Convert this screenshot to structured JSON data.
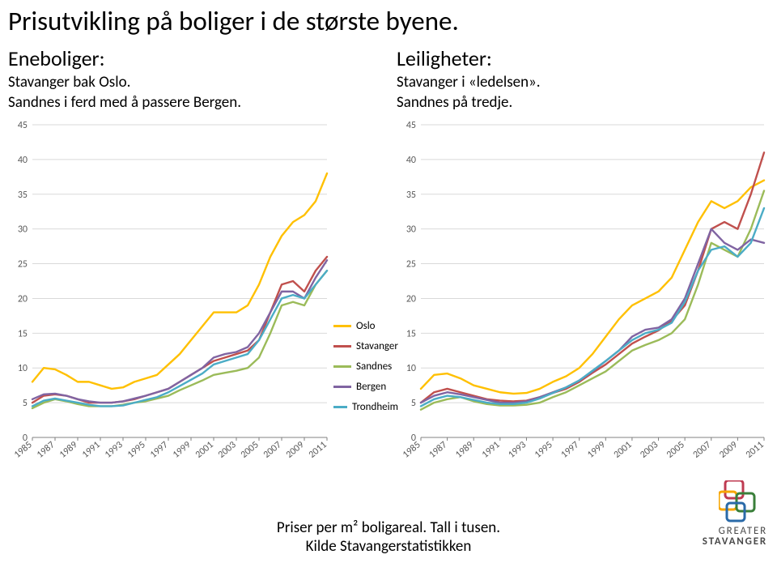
{
  "title": "Prisutvikling på boliger i de største byene.",
  "left_block": {
    "heading": "Eneboliger:",
    "line1": "Stavanger bak Oslo.",
    "line2": "Sandnes i ferd med å passere Bergen."
  },
  "right_block": {
    "heading": "Leiligheter:",
    "line1": "Stavanger i «ledelsen».",
    "line2": "Sandnes på tredje."
  },
  "legend": [
    {
      "label": "Oslo",
      "color": "#ffc000"
    },
    {
      "label": "Stavanger",
      "color": "#c0504d"
    },
    {
      "label": "Sandnes",
      "color": "#9bbb59"
    },
    {
      "label": "Bergen",
      "color": "#8064a2"
    },
    {
      "label": "Trondheim",
      "color": "#4bacc6"
    }
  ],
  "footer_line1": "Priser per m² boligareal. Tall i tusen.",
  "footer_line2": "Kilde Stavangerstatistikken",
  "logo_text1": "GREATER",
  "logo_text2": "STAVANGER",
  "chart_left": {
    "type": "line",
    "background_color": "#ffffff",
    "grid_color": "#d9d9d9",
    "axis_color": "#808080",
    "line_width": 2.4,
    "tick_fontsize": 12,
    "tick_color": "#595959",
    "ylim": [
      0,
      45
    ],
    "ytick_step": 5,
    "xlim": [
      1985,
      2011
    ],
    "xtick_step": 2,
    "x_label_rotate": -40,
    "years": [
      1985,
      1986,
      1987,
      1988,
      1989,
      1990,
      1991,
      1992,
      1993,
      1994,
      1995,
      1996,
      1997,
      1998,
      1999,
      2000,
      2001,
      2002,
      2003,
      2004,
      2005,
      2006,
      2007,
      2008,
      2009,
      2010,
      2011
    ],
    "series": [
      {
        "name": "Oslo",
        "color": "#ffc000",
        "values": [
          8,
          10,
          9.8,
          9,
          8,
          8,
          7.5,
          7,
          7.2,
          8,
          8.5,
          9,
          10.5,
          12,
          14,
          16,
          18,
          18,
          18,
          19,
          22,
          26,
          29,
          31,
          32,
          34,
          38
        ]
      },
      {
        "name": "Stavanger",
        "color": "#c0504d",
        "values": [
          5,
          6,
          6.2,
          6,
          5.5,
          5,
          5,
          5,
          5.2,
          5.5,
          6,
          6.5,
          7,
          8,
          9,
          10,
          11,
          11.5,
          12,
          12.5,
          14,
          18,
          22,
          22.5,
          21,
          24,
          26
        ]
      },
      {
        "name": "Sandnes",
        "color": "#9bbb59",
        "values": [
          4.2,
          5,
          5.5,
          5.2,
          4.8,
          4.5,
          4.5,
          4.5,
          4.7,
          5,
          5.2,
          5.6,
          6,
          6.8,
          7.5,
          8.2,
          9,
          9.3,
          9.6,
          10,
          11.5,
          15,
          19,
          19.5,
          19,
          22,
          24
        ]
      },
      {
        "name": "Bergen",
        "color": "#8064a2",
        "values": [
          5.5,
          6.2,
          6.3,
          6,
          5.5,
          5.2,
          5,
          5,
          5.2,
          5.6,
          6,
          6.5,
          7,
          8,
          9,
          10,
          11.5,
          12,
          12.3,
          13,
          15,
          18,
          21,
          21,
          20,
          23,
          25.5
        ]
      },
      {
        "name": "Trondheim",
        "color": "#4bacc6",
        "values": [
          4.5,
          5.3,
          5.6,
          5.3,
          5,
          4.7,
          4.5,
          4.5,
          4.6,
          5,
          5.4,
          5.8,
          6.5,
          7.4,
          8.3,
          9.2,
          10.5,
          11,
          11.5,
          12,
          14,
          17,
          20,
          20.5,
          20,
          22,
          24
        ]
      }
    ]
  },
  "chart_right": {
    "type": "line",
    "background_color": "#ffffff",
    "grid_color": "#d9d9d9",
    "axis_color": "#808080",
    "line_width": 2.4,
    "tick_fontsize": 12,
    "tick_color": "#595959",
    "ylim": [
      0,
      45
    ],
    "ytick_step": 5,
    "xlim": [
      1985,
      2011
    ],
    "xtick_step": 2,
    "x_label_rotate": -40,
    "years": [
      1985,
      1986,
      1987,
      1988,
      1989,
      1990,
      1991,
      1992,
      1993,
      1994,
      1995,
      1996,
      1997,
      1998,
      1999,
      2000,
      2001,
      2002,
      2003,
      2004,
      2005,
      2006,
      2007,
      2008,
      2009,
      2010,
      2011
    ],
    "series": [
      {
        "name": "Oslo",
        "color": "#ffc000",
        "values": [
          7,
          9,
          9.2,
          8.5,
          7.5,
          7,
          6.5,
          6.3,
          6.4,
          7,
          8,
          8.8,
          10,
          12,
          14.5,
          17,
          19,
          20,
          21,
          23,
          27,
          31,
          34,
          33,
          34,
          36,
          37
        ]
      },
      {
        "name": "Stavanger",
        "color": "#c0504d",
        "values": [
          5,
          6.5,
          7,
          6.5,
          6,
          5.5,
          5.3,
          5.2,
          5.3,
          5.8,
          6.4,
          7,
          8,
          9.3,
          10.5,
          12,
          13.5,
          14.5,
          15.4,
          16.8,
          19,
          24,
          30,
          31,
          30,
          35,
          41
        ]
      },
      {
        "name": "Sandnes",
        "color": "#9bbb59",
        "values": [
          4,
          5,
          5.5,
          5.8,
          5.2,
          4.8,
          4.6,
          4.6,
          4.7,
          5,
          5.8,
          6.5,
          7.5,
          8.5,
          9.5,
          11,
          12.5,
          13.3,
          14,
          15,
          17,
          22,
          28,
          27,
          26,
          30,
          35.5
        ]
      },
      {
        "name": "Bergen",
        "color": "#8064a2",
        "values": [
          5,
          6,
          6.5,
          6.2,
          5.8,
          5.4,
          5,
          5,
          5.2,
          5.8,
          6.5,
          7.2,
          8.2,
          9.5,
          11,
          12.5,
          14.5,
          15.5,
          15.8,
          17,
          20,
          25,
          30,
          28,
          27,
          28.5,
          28
        ]
      },
      {
        "name": "Trondheim",
        "color": "#4bacc6",
        "values": [
          4.5,
          5.5,
          6,
          5.8,
          5.4,
          5,
          4.8,
          4.8,
          5,
          5.6,
          6.4,
          7.2,
          8.2,
          9.6,
          11,
          12.5,
          14,
          15,
          15.5,
          16.5,
          19.5,
          24,
          27,
          27.5,
          26,
          28,
          33
        ]
      }
    ]
  }
}
